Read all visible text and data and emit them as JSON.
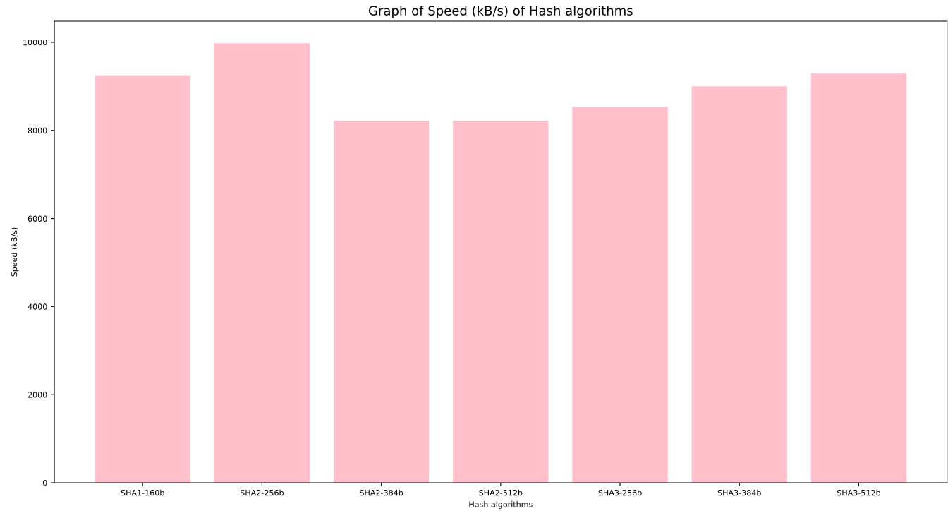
{
  "chart_data": {
    "type": "bar",
    "title": "Graph of Speed (kB/s) of Hash algorithms",
    "xlabel": "Hash algorithms",
    "ylabel": "Speed (kB/s)",
    "categories": [
      "SHA1-160b",
      "SHA2-256b",
      "SHA2-384b",
      "SHA2-512b",
      "SHA3-256b",
      "SHA3-384b",
      "SHA3-512b"
    ],
    "values": [
      9250,
      9980,
      8220,
      8220,
      8530,
      9000,
      9290
    ],
    "color": "#ffc0cb",
    "ylim": [
      0,
      10480
    ],
    "yticks": [
      0,
      2000,
      4000,
      6000,
      8000,
      10000
    ],
    "grid": false,
    "legend": false
  }
}
